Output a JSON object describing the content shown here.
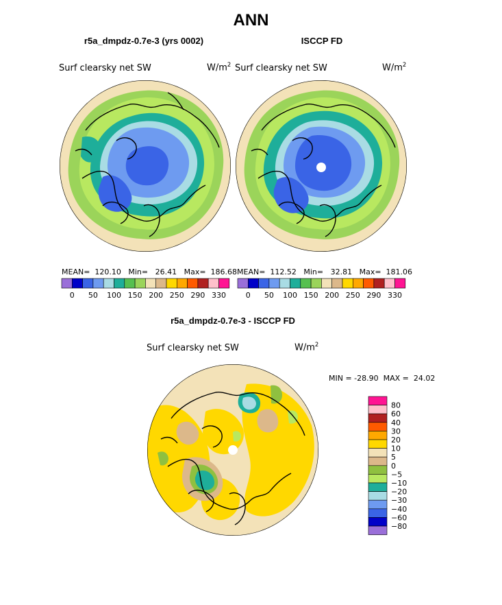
{
  "page": {
    "main_title": "ANN",
    "subtitle": "r5a_dmpdz-0.7e-3 - ISCCP FD"
  },
  "panel_left": {
    "title": "r5a_dmpdz-0.7e-3 (yrs 0002)",
    "field": "Surf clearsky net SW",
    "units_base": "W/m",
    "units_exp": "2",
    "stats": "MEAN=  120.10   Min=   26.41   Max=  186.68"
  },
  "panel_right": {
    "title": "ISCCP FD",
    "field": "Surf clearsky net SW",
    "units_base": "W/m",
    "units_exp": "2",
    "stats": "MEAN=  112.52   Min=   32.81   Max=  181.06"
  },
  "panel_diff": {
    "field": "Surf clearsky net SW",
    "units_base": "W/m",
    "units_exp": "2",
    "stats": "MIN = -28.90  MAX =  24.02"
  },
  "chart_data": [
    {
      "type": "heatmap",
      "projection": "polar-stereographic (north pole)",
      "title": "r5a_dmpdz-0.7e-3 (yrs 0002)",
      "variable": "Surf clearsky net SW",
      "units": "W/m2",
      "mean": 120.1,
      "min": 26.41,
      "max": 186.68,
      "colorbar_levels": [
        0,
        50,
        100,
        150,
        200,
        250,
        290,
        330
      ],
      "colorbar_labels": [
        "0",
        "50",
        "100",
        "150",
        "200",
        "250",
        "290",
        "330"
      ],
      "colors": [
        "#9a6fd9",
        "#0000c8",
        "#3a64e6",
        "#6e9bf0",
        "#a9dce4",
        "#1eae9a",
        "#56c050",
        "#9bd45a",
        "#f3e2b8",
        "#dcb88a",
        "#ffd800",
        "#ffa800",
        "#ff5a00",
        "#b02020",
        "#ffc0cb",
        "#ff1493"
      ]
    },
    {
      "type": "heatmap",
      "projection": "polar-stereographic (north pole)",
      "title": "ISCCP FD",
      "variable": "Surf clearsky net SW",
      "units": "W/m2",
      "mean": 112.52,
      "min": 32.81,
      "max": 181.06,
      "colorbar_levels": [
        0,
        50,
        100,
        150,
        200,
        250,
        290,
        330
      ],
      "colorbar_labels": [
        "0",
        "50",
        "100",
        "150",
        "200",
        "250",
        "290",
        "330"
      ],
      "colors": [
        "#9a6fd9",
        "#0000c8",
        "#3a64e6",
        "#6e9bf0",
        "#a9dce4",
        "#1eae9a",
        "#56c050",
        "#9bd45a",
        "#f3e2b8",
        "#dcb88a",
        "#ffd800",
        "#ffa800",
        "#ff5a00",
        "#b02020",
        "#ffc0cb",
        "#ff1493"
      ]
    },
    {
      "type": "heatmap",
      "projection": "polar-stereographic (north pole)",
      "title": "r5a_dmpdz-0.7e-3 - ISCCP FD",
      "variable": "Surf clearsky net SW",
      "units": "W/m2",
      "min": -28.9,
      "max": 24.02,
      "colorbar_levels": [
        80,
        60,
        40,
        30,
        20,
        10,
        5,
        0,
        -5,
        -10,
        -20,
        -30,
        -40,
        -60,
        -80
      ],
      "colorbar_labels": [
        "80",
        "60",
        "40",
        "30",
        "20",
        "10",
        "5",
        "0",
        "−5",
        "−10",
        "−20",
        "−30",
        "−40",
        "−60",
        "−80"
      ],
      "colors": [
        "#ff1493",
        "#ffc0cb",
        "#b02020",
        "#ff5a00",
        "#ffa800",
        "#ffd800",
        "#f3e2b8",
        "#dcb88a",
        "#8fc040",
        "#b8e860",
        "#1eae9a",
        "#a9dce4",
        "#6e9bf0",
        "#3a64e6",
        "#0000c8",
        "#9a6fd9"
      ]
    }
  ]
}
